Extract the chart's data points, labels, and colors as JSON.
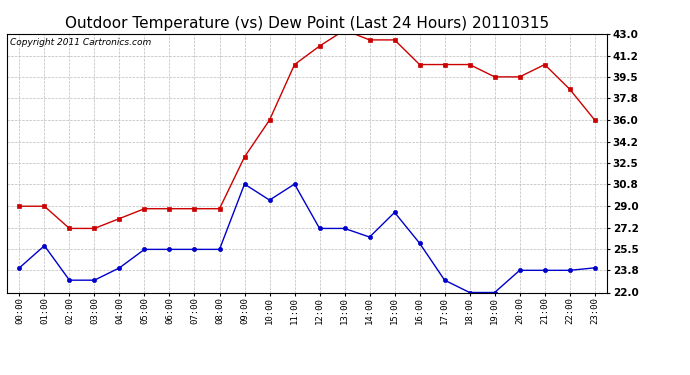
{
  "title": "Outdoor Temperature (vs) Dew Point (Last 24 Hours) 20110315",
  "copyright": "Copyright 2011 Cartronics.com",
  "hours": [
    "00:00",
    "01:00",
    "02:00",
    "03:00",
    "04:00",
    "05:00",
    "06:00",
    "07:00",
    "08:00",
    "09:00",
    "10:00",
    "11:00",
    "12:00",
    "13:00",
    "14:00",
    "15:00",
    "16:00",
    "17:00",
    "18:00",
    "19:00",
    "20:00",
    "21:00",
    "22:00",
    "23:00"
  ],
  "temp": [
    29.0,
    29.0,
    27.2,
    27.2,
    28.0,
    28.8,
    28.8,
    28.8,
    28.8,
    33.0,
    36.0,
    40.5,
    42.0,
    43.3,
    42.5,
    42.5,
    40.5,
    40.5,
    40.5,
    39.5,
    39.5,
    40.5,
    38.5,
    36.0
  ],
  "dew": [
    24.0,
    25.8,
    23.0,
    23.0,
    24.0,
    25.5,
    25.5,
    25.5,
    25.5,
    30.8,
    29.5,
    30.8,
    27.2,
    27.2,
    26.5,
    28.5,
    26.0,
    23.0,
    22.0,
    22.0,
    23.8,
    23.8,
    23.8,
    24.0
  ],
  "temp_color": "#cc0000",
  "dew_color": "#0000cc",
  "bg_color": "#ffffff",
  "grid_color": "#bbbbbb",
  "ymin": 22.0,
  "ymax": 43.0,
  "yticks": [
    22.0,
    23.8,
    25.5,
    27.2,
    29.0,
    30.8,
    32.5,
    34.2,
    36.0,
    37.8,
    39.5,
    41.2,
    43.0
  ],
  "title_fontsize": 11,
  "copyright_fontsize": 6.5,
  "tick_fontsize": 7.5,
  "xtick_fontsize": 6.5
}
